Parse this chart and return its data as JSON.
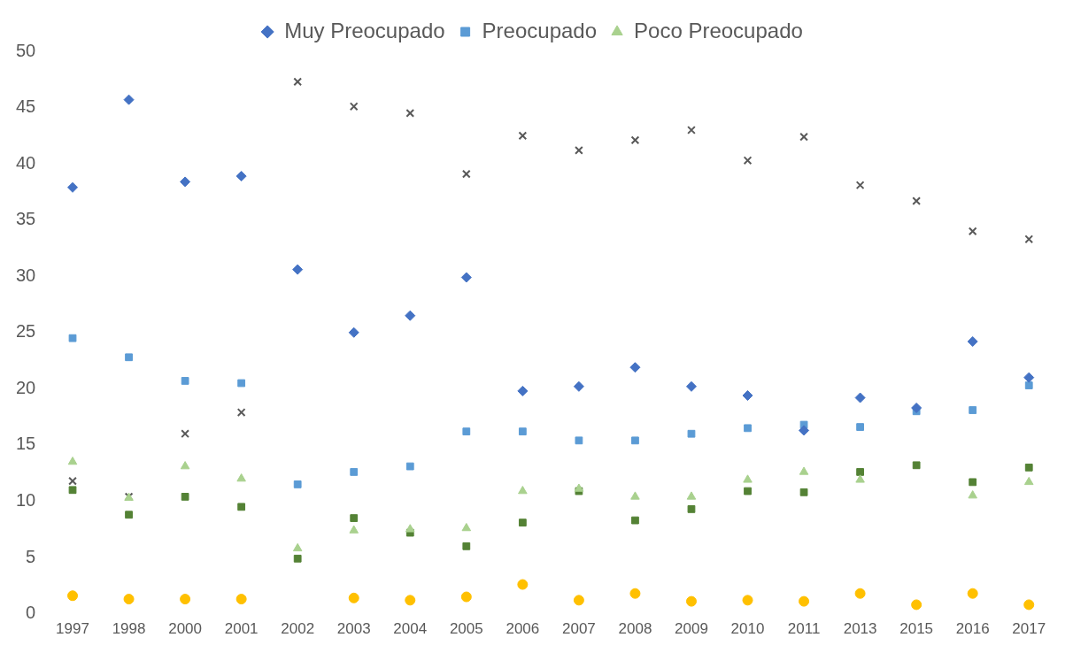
{
  "chart_data": {
    "type": "scatter",
    "categories": [
      "1997",
      "1998",
      "2000",
      "2001",
      "2002",
      "2003",
      "2004",
      "2005",
      "2006",
      "2007",
      "2008",
      "2009",
      "2010",
      "2011",
      "2013",
      "2015",
      "2016",
      "2017"
    ],
    "ylim": [
      0,
      50
    ],
    "yticks": [
      0,
      5,
      10,
      15,
      20,
      25,
      30,
      35,
      40,
      45,
      50
    ],
    "grid": false,
    "legend": "top",
    "series": [
      {
        "name": "Muy Preocupado",
        "color": "#4472c4",
        "marker": "diamond",
        "values": [
          37.9,
          45.7,
          38.4,
          38.9,
          30.6,
          25.0,
          26.5,
          29.9,
          19.8,
          20.2,
          21.9,
          20.2,
          19.4,
          16.3,
          19.2,
          18.3,
          24.2,
          21.0
        ]
      },
      {
        "name": "Preocupado",
        "color": "#5b9bd5",
        "marker": "square",
        "values": [
          24.5,
          22.8,
          20.7,
          20.5,
          11.5,
          12.6,
          13.1,
          16.2,
          16.2,
          15.4,
          15.4,
          16.0,
          16.5,
          16.8,
          16.6,
          18.0,
          18.1,
          20.3
        ]
      },
      {
        "name": "Poco Preocupado",
        "color": "#a9d18e",
        "marker": "triangle",
        "values": [
          13.5,
          10.3,
          13.1,
          12.0,
          5.8,
          7.4,
          7.5,
          7.6,
          10.9,
          11.1,
          10.4,
          10.4,
          11.9,
          12.6,
          11.9,
          null,
          10.5,
          11.7
        ]
      },
      {
        "color": "#595959",
        "marker": "cross",
        "values": [
          11.8,
          10.4,
          16.0,
          17.9,
          47.3,
          45.1,
          44.5,
          39.1,
          42.5,
          41.2,
          42.1,
          43.0,
          40.3,
          42.4,
          38.1,
          36.7,
          34.0,
          33.3
        ]
      },
      {
        "color": "#548235",
        "marker": "square",
        "values": [
          11.0,
          8.8,
          10.4,
          9.5,
          4.9,
          8.5,
          7.2,
          6.0,
          8.1,
          10.9,
          8.3,
          9.3,
          10.9,
          10.8,
          12.6,
          13.2,
          11.7,
          13.0
        ]
      },
      {
        "color": "#ffc000",
        "marker": "circle",
        "values": [
          1.6,
          1.3,
          1.3,
          1.3,
          null,
          1.4,
          1.2,
          1.5,
          2.6,
          1.2,
          1.8,
          1.1,
          1.2,
          1.1,
          1.8,
          0.8,
          1.8,
          0.8
        ]
      }
    ]
  }
}
